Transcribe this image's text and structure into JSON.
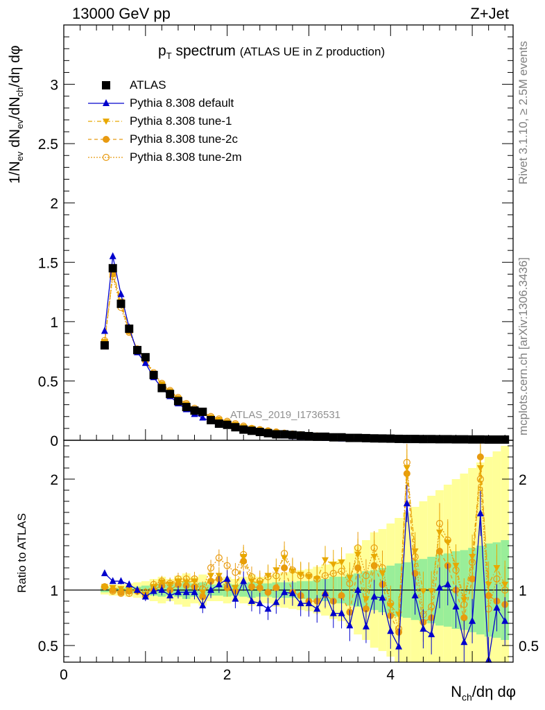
{
  "header": {
    "energy_label": "13000 GeV pp",
    "process_label": "Z+Jet",
    "title_main": "p",
    "title_sub": "T",
    "title_rest": " spectrum",
    "title_extra": "(ATLAS UE in Z production)",
    "analysis_id": "ATLAS_2019_I1736531",
    "rivet_label": "Rivet 3.1.10, ≥ 2.5M events",
    "mcplots_label": "mcplots.cern.ch [arXiv:1306.3436]"
  },
  "axes": {
    "ylabel_main": "1/N_ev dN_ev/dN_ch/dη dφ",
    "ylabel_ratio": "Ratio to ATLAS",
    "xlabel": "N_ch/dη dφ"
  },
  "legend": [
    {
      "name": "ATLAS",
      "color": "#000000",
      "marker": "square",
      "line": "none"
    },
    {
      "name": "Pythia 8.308 default",
      "color": "#0000cc",
      "marker": "triangle-up",
      "line": "solid"
    },
    {
      "name": "Pythia 8.308 tune-1",
      "color": "#e8a800",
      "marker": "triangle-down",
      "line": "dashdot"
    },
    {
      "name": "Pythia 8.308 tune-2c",
      "color": "#e89a10",
      "marker": "circle",
      "line": "dashed"
    },
    {
      "name": "Pythia 8.308 tune-2m",
      "color": "#e89a10",
      "marker": "open-circle",
      "line": "dotted"
    }
  ],
  "chart_data": [
    {
      "type": "scatter",
      "panel": "main",
      "xlim": [
        0,
        5.5
      ],
      "ylim": [
        0,
        3.5
      ],
      "yticks": [
        0,
        0.5,
        1,
        1.5,
        2,
        2.5,
        3
      ],
      "x": [
        0.5,
        0.6,
        0.7,
        0.8,
        0.9,
        1.0,
        1.1,
        1.2,
        1.3,
        1.4,
        1.5,
        1.6,
        1.7,
        1.8,
        1.9,
        2.0,
        2.1,
        2.2,
        2.3,
        2.4,
        2.5,
        2.6,
        2.7,
        2.8,
        2.9,
        3.0,
        3.1,
        3.2,
        3.3,
        3.4,
        3.5,
        3.6,
        3.7,
        3.8,
        3.9,
        4.0,
        4.1,
        4.2,
        4.3,
        4.4,
        4.5,
        4.6,
        4.7,
        4.8,
        4.9,
        5.0,
        5.1,
        5.2,
        5.3,
        5.4
      ],
      "series": [
        {
          "name": "ATLAS",
          "values": [
            0.8,
            1.45,
            1.15,
            0.94,
            0.76,
            0.7,
            0.55,
            0.44,
            0.39,
            0.33,
            0.28,
            0.25,
            0.24,
            0.17,
            0.14,
            0.13,
            0.11,
            0.09,
            0.08,
            0.07,
            0.06,
            0.05,
            0.05,
            0.045,
            0.04,
            0.035,
            0.03,
            0.03,
            0.025,
            0.025,
            0.02,
            0.02,
            0.018,
            0.016,
            0.015,
            0.014,
            0.012,
            0.011,
            0.011,
            0.01,
            0.01,
            0.009,
            0.009,
            0.008,
            0.008,
            0.007,
            0.007,
            0.006,
            0.006,
            0.006
          ]
        },
        {
          "name": "Pythia 8.308 default",
          "values": [
            0.92,
            1.55,
            1.23,
            0.95,
            0.74,
            0.65,
            0.53,
            0.44,
            0.37,
            0.31,
            0.26,
            0.22,
            0.19,
            0.16,
            0.14,
            0.12,
            0.1,
            0.085,
            0.072,
            0.062,
            0.053,
            0.045,
            0.039,
            0.033,
            0.028,
            0.024,
            0.021,
            0.018,
            0.015,
            0.013,
            0.011,
            0.01,
            0.008,
            0.007,
            0.006,
            0.005,
            0.005,
            0.004,
            0.004,
            0.003,
            0.003,
            0.003,
            0.002,
            0.002,
            0.002,
            0.002,
            0.002,
            0.001,
            0.001,
            0.001
          ]
        },
        {
          "name": "Pythia 8.308 tune-1",
          "values": [
            0.83,
            1.42,
            1.17,
            0.93,
            0.76,
            0.67,
            0.56,
            0.47,
            0.41,
            0.35,
            0.3,
            0.26,
            0.23,
            0.19,
            0.17,
            0.15,
            0.13,
            0.11,
            0.1,
            0.085,
            0.075,
            0.065,
            0.057,
            0.05,
            0.044,
            0.039,
            0.034,
            0.03,
            0.027,
            0.024,
            0.021,
            0.019,
            0.017,
            0.015,
            0.013,
            0.012,
            0.011,
            0.01,
            0.009,
            0.008,
            0.007,
            0.007,
            0.006,
            0.006,
            0.005,
            0.005,
            0.004,
            0.004,
            0.004,
            0.003
          ]
        },
        {
          "name": "Pythia 8.308 tune-2c",
          "values": [
            0.82,
            1.4,
            1.15,
            0.92,
            0.76,
            0.67,
            0.56,
            0.47,
            0.41,
            0.35,
            0.3,
            0.26,
            0.23,
            0.19,
            0.17,
            0.15,
            0.13,
            0.11,
            0.1,
            0.085,
            0.075,
            0.066,
            0.058,
            0.051,
            0.045,
            0.04,
            0.035,
            0.031,
            0.028,
            0.025,
            0.022,
            0.02,
            0.018,
            0.016,
            0.014,
            0.013,
            0.011,
            0.01,
            0.009,
            0.009,
            0.008,
            0.007,
            0.006,
            0.006,
            0.005,
            0.005,
            0.004,
            0.004,
            0.004,
            0.003
          ]
        },
        {
          "name": "Pythia 8.308 tune-2m",
          "values": [
            0.84,
            1.38,
            1.12,
            0.91,
            0.77,
            0.68,
            0.57,
            0.48,
            0.42,
            0.36,
            0.31,
            0.27,
            0.24,
            0.2,
            0.18,
            0.16,
            0.14,
            0.12,
            0.1,
            0.09,
            0.08,
            0.07,
            0.06,
            0.053,
            0.047,
            0.042,
            0.037,
            0.033,
            0.029,
            0.026,
            0.023,
            0.021,
            0.019,
            0.017,
            0.015,
            0.014,
            0.012,
            0.011,
            0.01,
            0.009,
            0.008,
            0.007,
            0.007,
            0.006,
            0.006,
            0.005,
            0.005,
            0.004,
            0.004,
            0.004
          ]
        }
      ]
    },
    {
      "type": "scatter",
      "panel": "ratio",
      "xlim": [
        0,
        5.5
      ],
      "ylim": [
        0.35,
        2.35
      ],
      "yticks_labeled": [
        0.5,
        1,
        2
      ],
      "xticks_labeled": [
        0,
        2,
        4
      ],
      "x": [
        0.5,
        0.6,
        0.7,
        0.8,
        0.9,
        1.0,
        1.1,
        1.2,
        1.3,
        1.4,
        1.5,
        1.6,
        1.7,
        1.8,
        1.9,
        2.0,
        2.1,
        2.2,
        2.3,
        2.4,
        2.5,
        2.6,
        2.7,
        2.8,
        2.9,
        3.0,
        3.1,
        3.2,
        3.3,
        3.4,
        3.5,
        3.6,
        3.7,
        3.8,
        3.9,
        4.0,
        4.1,
        4.2,
        4.3,
        4.4,
        4.5,
        4.6,
        4.7,
        4.8,
        4.9,
        5.0,
        5.1,
        5.2,
        5.3,
        5.4
      ],
      "band_green_halfwidth": [
        0.02,
        0.02,
        0.02,
        0.03,
        0.03,
        0.04,
        0.05,
        0.06,
        0.05,
        0.06,
        0.08,
        0.06,
        0.07,
        0.05,
        0.05,
        0.06,
        0.05,
        0.06,
        0.07,
        0.06,
        0.06,
        0.07,
        0.07,
        0.07,
        0.08,
        0.08,
        0.09,
        0.1,
        0.12,
        0.12,
        0.14,
        0.15,
        0.17,
        0.18,
        0.2,
        0.22,
        0.24,
        0.25,
        0.27,
        0.28,
        0.3,
        0.32,
        0.33,
        0.35,
        0.36,
        0.38,
        0.4,
        0.42,
        0.43,
        0.45
      ],
      "band_yellow_halfwidth": [
        0.04,
        0.05,
        0.05,
        0.06,
        0.07,
        0.08,
        0.1,
        0.12,
        0.1,
        0.13,
        0.15,
        0.12,
        0.14,
        0.1,
        0.1,
        0.12,
        0.1,
        0.12,
        0.14,
        0.12,
        0.12,
        0.15,
        0.16,
        0.17,
        0.18,
        0.19,
        0.21,
        0.23,
        0.26,
        0.28,
        0.33,
        0.4,
        0.45,
        0.52,
        0.55,
        0.6,
        0.65,
        0.7,
        0.75,
        0.8,
        0.85,
        0.9,
        0.95,
        1.0,
        1.05,
        1.1,
        1.15,
        1.2,
        1.25,
        1.3
      ],
      "series": [
        {
          "name": "Pythia 8.308 default",
          "values": [
            1.15,
            1.08,
            1.08,
            1.05,
            1.0,
            0.94,
            0.99,
            1.0,
            0.95,
            0.98,
            0.98,
            0.98,
            0.86,
            1.0,
            1.05,
            1.1,
            0.92,
            1.08,
            0.9,
            0.88,
            0.83,
            0.89,
            0.98,
            0.97,
            0.88,
            0.88,
            0.83,
            0.97,
            0.79,
            0.79,
            0.68,
            1.0,
            0.67,
            0.94,
            0.93,
            0.63,
            0.49,
            1.78,
            0.95,
            0.65,
            0.6,
            1.02,
            1.05,
            0.85,
            0.53,
            0.72,
            1.69,
            0.37,
            0.84,
            0.72
          ]
        },
        {
          "name": "Pythia 8.308 tune-1",
          "values": [
            1.03,
            1.02,
            1.01,
            1.0,
            0.99,
            0.96,
            1.03,
            1.07,
            1.05,
            1.08,
            1.07,
            1.08,
            0.98,
            1.13,
            1.13,
            1.06,
            1.02,
            1.3,
            1.08,
            1.06,
            1.13,
            1.18,
            1.29,
            1.17,
            1.14,
            1.12,
            1.1,
            1.27,
            1.23,
            1.25,
            1.11,
            1.32,
            0.92,
            1.3,
            1.15,
            0.86,
            0.78,
            2.1,
            1.35,
            0.99,
            0.99,
            1.52,
            1.43,
            1.22,
            0.91,
            1.3,
            2.1,
            1.05,
            1.2,
            1.05
          ]
        },
        {
          "name": "Pythia 8.308 tune-2c",
          "values": [
            1.03,
            1.0,
            0.98,
            0.99,
            0.99,
            0.95,
            1.0,
            1.04,
            1.0,
            1.05,
            1.04,
            1.03,
            0.94,
            1.08,
            1.1,
            1.02,
            0.99,
            1.26,
            1.03,
            1.02,
            0.98,
            1.02,
            1.2,
            0.98,
            0.95,
            0.9,
            0.9,
            0.96,
            0.9,
            0.95,
            0.8,
            1.2,
            0.83,
            1.22,
            1.05,
            0.77,
            0.62,
            2.05,
            1.15,
            0.71,
            0.75,
            1.35,
            1.22,
            1.0,
            0.75,
            1.1,
            2.2,
            0.95,
            0.9,
            0.87
          ]
        },
        {
          "name": "Pythia 8.308 tune-2m",
          "values": [
            1.03,
            0.99,
            0.97,
            0.97,
            0.99,
            0.98,
            1.05,
            1.08,
            1.06,
            1.1,
            1.1,
            1.1,
            1.01,
            1.2,
            1.29,
            1.22,
            1.16,
            1.32,
            1.12,
            1.08,
            1.12,
            1.13,
            1.33,
            1.18,
            1.13,
            1.13,
            1.1,
            1.13,
            1.15,
            1.17,
            1.06,
            1.38,
            1.13,
            1.38,
            1.2,
            0.88,
            0.65,
            2.15,
            1.3,
            0.78,
            0.85,
            1.6,
            1.45,
            1.18,
            0.87,
            1.25,
            2.0,
            0.83,
            1.1,
            1.0
          ]
        }
      ]
    }
  ]
}
